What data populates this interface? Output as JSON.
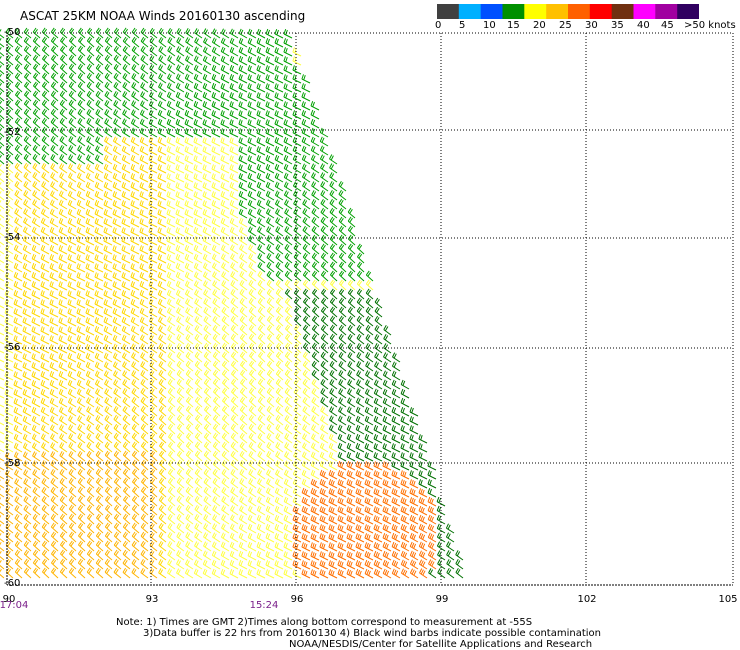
{
  "title": "ASCAT 25KM NOAA Winds 20160130 ascending",
  "colorbar": {
    "colors": [
      "#404040",
      "#00b0ff",
      "#0050ff",
      "#009000",
      "#ffff00",
      "#ffc000",
      "#ff6000",
      "#ff0000",
      "#703010",
      "#ff00ff",
      "#a000a0",
      "#300060"
    ],
    "labels": [
      "0",
      "5",
      "10",
      "15",
      "20",
      "25",
      "30",
      "35",
      "40",
      "45",
      ">50 knots"
    ]
  },
  "axes": {
    "lat_labels": [
      "-50",
      "-52",
      "-54",
      "-56",
      "-58",
      "-60"
    ],
    "lon_labels": [
      "90",
      "93",
      "96",
      "99",
      "102",
      "105"
    ]
  },
  "times": [
    "17:04",
    "15:24"
  ],
  "notes": {
    "line1": "Note: 1) Times are GMT 2)Times along bottom correspond to measurement at -55S",
    "line2": "3)Data buffer is 22 hrs from 20160130 4) Black wind barbs indicate possible contamination",
    "line3": "NOAA/NESDIS/Center for Satellite Applications and Research"
  },
  "legend": {
    "wind_speed_units": "knots"
  }
}
